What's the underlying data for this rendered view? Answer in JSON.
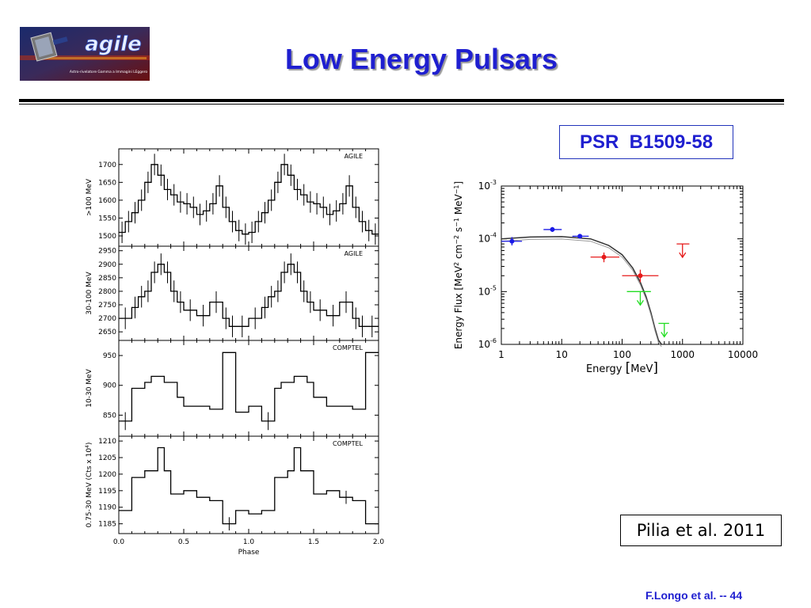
{
  "slide": {
    "title": "Low Energy Pulsars",
    "source_name": "PSR  B1509-58",
    "reference": "Pilia et al. 2011",
    "footer": "F.Longo et al. -- 44"
  },
  "logo": {
    "wordmark": "agile",
    "tagline": "Astro-rivelatore Gamma a Immagini LEggero"
  },
  "colors": {
    "title": "#1f1fd0",
    "blue_points": "#1a1ae6",
    "red_points": "#e61a1a",
    "green_limits": "#22dd22"
  },
  "chart_data": [
    {
      "type": "line",
      "drawstyle": "histogram",
      "instrument": "AGILE",
      "ylabel": ">100 MeV",
      "xlabel": "",
      "xlim": [
        0.0,
        2.0
      ],
      "ylim": [
        1480,
        1735
      ],
      "yticks": [
        1500,
        1550,
        1600,
        1650,
        1700
      ],
      "x": [
        0.0,
        0.05,
        0.1,
        0.15,
        0.2,
        0.25,
        0.3,
        0.35,
        0.4,
        0.45,
        0.5,
        0.55,
        0.6,
        0.65,
        0.7,
        0.75,
        0.8,
        0.85,
        0.9,
        0.95,
        1.0,
        1.05,
        1.1,
        1.15,
        1.2,
        1.25,
        1.3,
        1.35,
        1.4,
        1.45,
        1.5,
        1.55,
        1.6,
        1.65,
        1.7,
        1.75,
        1.8,
        1.85,
        1.9,
        1.95
      ],
      "y": [
        1510,
        1540,
        1565,
        1600,
        1650,
        1700,
        1670,
        1630,
        1615,
        1595,
        1590,
        1580,
        1560,
        1570,
        1590,
        1640,
        1580,
        1540,
        1515,
        1505,
        1510,
        1540,
        1565,
        1600,
        1650,
        1700,
        1670,
        1630,
        1615,
        1595,
        1590,
        1580,
        1560,
        1570,
        1590,
        1640,
        1580,
        1540,
        1515,
        1505
      ],
      "err": [
        30,
        30,
        30,
        30,
        30,
        30,
        30,
        30,
        30,
        30,
        30,
        30,
        30,
        30,
        30,
        30,
        30,
        30,
        30,
        30,
        30,
        30,
        30,
        30,
        30,
        30,
        30,
        30,
        30,
        30,
        30,
        30,
        30,
        30,
        30,
        30,
        30,
        30,
        30,
        30
      ]
    },
    {
      "type": "line",
      "drawstyle": "histogram",
      "instrument": "AGILE",
      "ylabel": "30-100 MeV",
      "xlabel": "",
      "xlim": [
        0.0,
        2.0
      ],
      "ylim": [
        2630,
        2955
      ],
      "yticks": [
        2650,
        2700,
        2750,
        2800,
        2850,
        2900,
        2950
      ],
      "x": [
        0.0,
        0.1,
        0.15,
        0.2,
        0.25,
        0.3,
        0.35,
        0.4,
        0.45,
        0.5,
        0.6,
        0.7,
        0.8,
        0.85,
        0.9,
        1.0,
        1.1,
        1.15,
        1.2,
        1.25,
        1.3,
        1.35,
        1.4,
        1.45,
        1.5,
        1.6,
        1.7,
        1.8,
        1.85,
        1.9
      ],
      "y": [
        2700,
        2740,
        2780,
        2800,
        2870,
        2900,
        2870,
        2800,
        2760,
        2730,
        2710,
        2760,
        2700,
        2670,
        2670,
        2700,
        2740,
        2780,
        2800,
        2870,
        2900,
        2870,
        2800,
        2760,
        2730,
        2710,
        2760,
        2700,
        2670,
        2670
      ],
      "err": [
        40,
        40,
        40,
        40,
        40,
        40,
        40,
        40,
        40,
        40,
        40,
        40,
        40,
        40,
        40,
        40,
        40,
        40,
        40,
        40,
        40,
        40,
        40,
        40,
        40,
        40,
        40,
        40,
        40,
        40
      ]
    },
    {
      "type": "line",
      "drawstyle": "histogram",
      "instrument": "COMPTEL",
      "ylabel": "10-30 MeV",
      "xlabel": "",
      "xlim": [
        0.0,
        2.0
      ],
      "ylim": [
        820,
        970
      ],
      "yticks": [
        850,
        900,
        950
      ],
      "x": [
        0.0,
        0.1,
        0.2,
        0.25,
        0.35,
        0.45,
        0.5,
        0.6,
        0.7,
        0.8,
        0.9,
        1.0,
        1.1,
        1.2,
        1.25,
        1.35,
        1.45,
        1.5,
        1.6,
        1.7,
        1.8,
        1.9
      ],
      "y": [
        840,
        895,
        905,
        915,
        905,
        880,
        865,
        865,
        860,
        955,
        855,
        865,
        840,
        895,
        905,
        915,
        905,
        880,
        865,
        865,
        860,
        955
      ],
      "err": [
        15,
        0,
        0,
        0,
        0,
        0,
        0,
        0,
        0,
        0,
        0,
        0,
        15,
        0,
        0,
        0,
        0,
        0,
        0,
        0,
        0,
        0
      ]
    },
    {
      "type": "line",
      "drawstyle": "histogram",
      "instrument": "COMPTEL",
      "ylabel": "0.75-30 MeV (Cts x 10^4)",
      "xlabel": "Phase",
      "xlim": [
        0.0,
        2.0
      ],
      "ylim": [
        1183,
        1210.5
      ],
      "yticks": [
        1185,
        1190,
        1195,
        1200,
        1205,
        1210
      ],
      "xticks": [
        0.0,
        0.5,
        1.0,
        1.5,
        2.0
      ],
      "x": [
        0.0,
        0.1,
        0.2,
        0.3,
        0.35,
        0.4,
        0.5,
        0.6,
        0.7,
        0.8,
        0.9,
        1.0,
        1.1,
        1.2,
        1.3,
        1.35,
        1.4,
        1.5,
        1.6,
        1.7,
        1.8,
        1.9
      ],
      "y": [
        1189,
        1199,
        1201,
        1208,
        1201,
        1194,
        1195,
        1193,
        1192,
        1185,
        1189,
        1188,
        1189,
        1199,
        1201,
        1208,
        1201,
        1194,
        1195,
        1193,
        1192,
        1185
      ],
      "err": [
        0,
        0,
        0,
        0,
        0,
        0,
        0,
        0,
        0,
        2,
        0,
        0,
        0,
        0,
        0,
        0,
        0,
        0,
        0,
        2,
        0,
        0
      ]
    },
    {
      "type": "scatter",
      "title": "",
      "xlabel": "Energy [MeV]",
      "ylabel": "Energy Flux [MeV^2 cm^-2 s^-1 MeV^-1]",
      "xscale": "log",
      "yscale": "log",
      "xlim": [
        1,
        10000
      ],
      "ylim": [
        1e-06,
        0.001
      ],
      "xtick_labels": [
        "1",
        "10",
        "100",
        "1000",
        "10000"
      ],
      "ytick_labels": [
        "10^-6",
        "10^-5",
        "10^-4",
        "10^-3"
      ],
      "model_curve": {
        "x": [
          1,
          3,
          10,
          30,
          60,
          100,
          150,
          200,
          250,
          300,
          350,
          400,
          450
        ],
        "y": [
          0.0001,
          0.000108,
          0.00011,
          0.0001,
          7.5e-05,
          5e-05,
          2.8e-05,
          1.5e-05,
          8e-06,
          4e-06,
          2e-06,
          1.2e-06,
          1e-06
        ]
      },
      "series": [
        {
          "name": "",
          "color": "#1a1ae6",
          "points": [
            {
              "x": 1.5,
              "y": 9e-05,
              "xlo": 1.0,
              "xhi": 2.2,
              "ylo": 7.5e-05,
              "yhi": 0.000108
            },
            {
              "x": 7,
              "y": 0.00015,
              "xlo": 5,
              "xhi": 10,
              "ylo": 0.000135,
              "yhi": 0.000167
            },
            {
              "x": 20,
              "y": 0.000112,
              "xlo": 15,
              "xhi": 28,
              "ylo": 0.000105,
              "yhi": 0.00012
            }
          ]
        },
        {
          "name": "",
          "color": "#e61a1a",
          "points": [
            {
              "x": 50,
              "y": 4.5e-05,
              "xlo": 30,
              "xhi": 90,
              "ylo": 3.6e-05,
              "yhi": 5.5e-05
            },
            {
              "x": 200,
              "y": 2e-05,
              "xlo": 100,
              "xhi": 400,
              "ylo": 1.5e-05,
              "yhi": 2.6e-05
            }
          ],
          "upper_limits": [
            {
              "x": 1000,
              "y": 8e-05,
              "xlo": 800,
              "xhi": 1300
            }
          ]
        },
        {
          "name": "",
          "color": "#22dd22",
          "upper_limits": [
            {
              "x": 200,
              "y": 1e-05,
              "xlo": 120,
              "xhi": 300
            },
            {
              "x": 500,
              "y": 2.5e-06,
              "xlo": 400,
              "xhi": 600
            }
          ]
        }
      ]
    }
  ]
}
